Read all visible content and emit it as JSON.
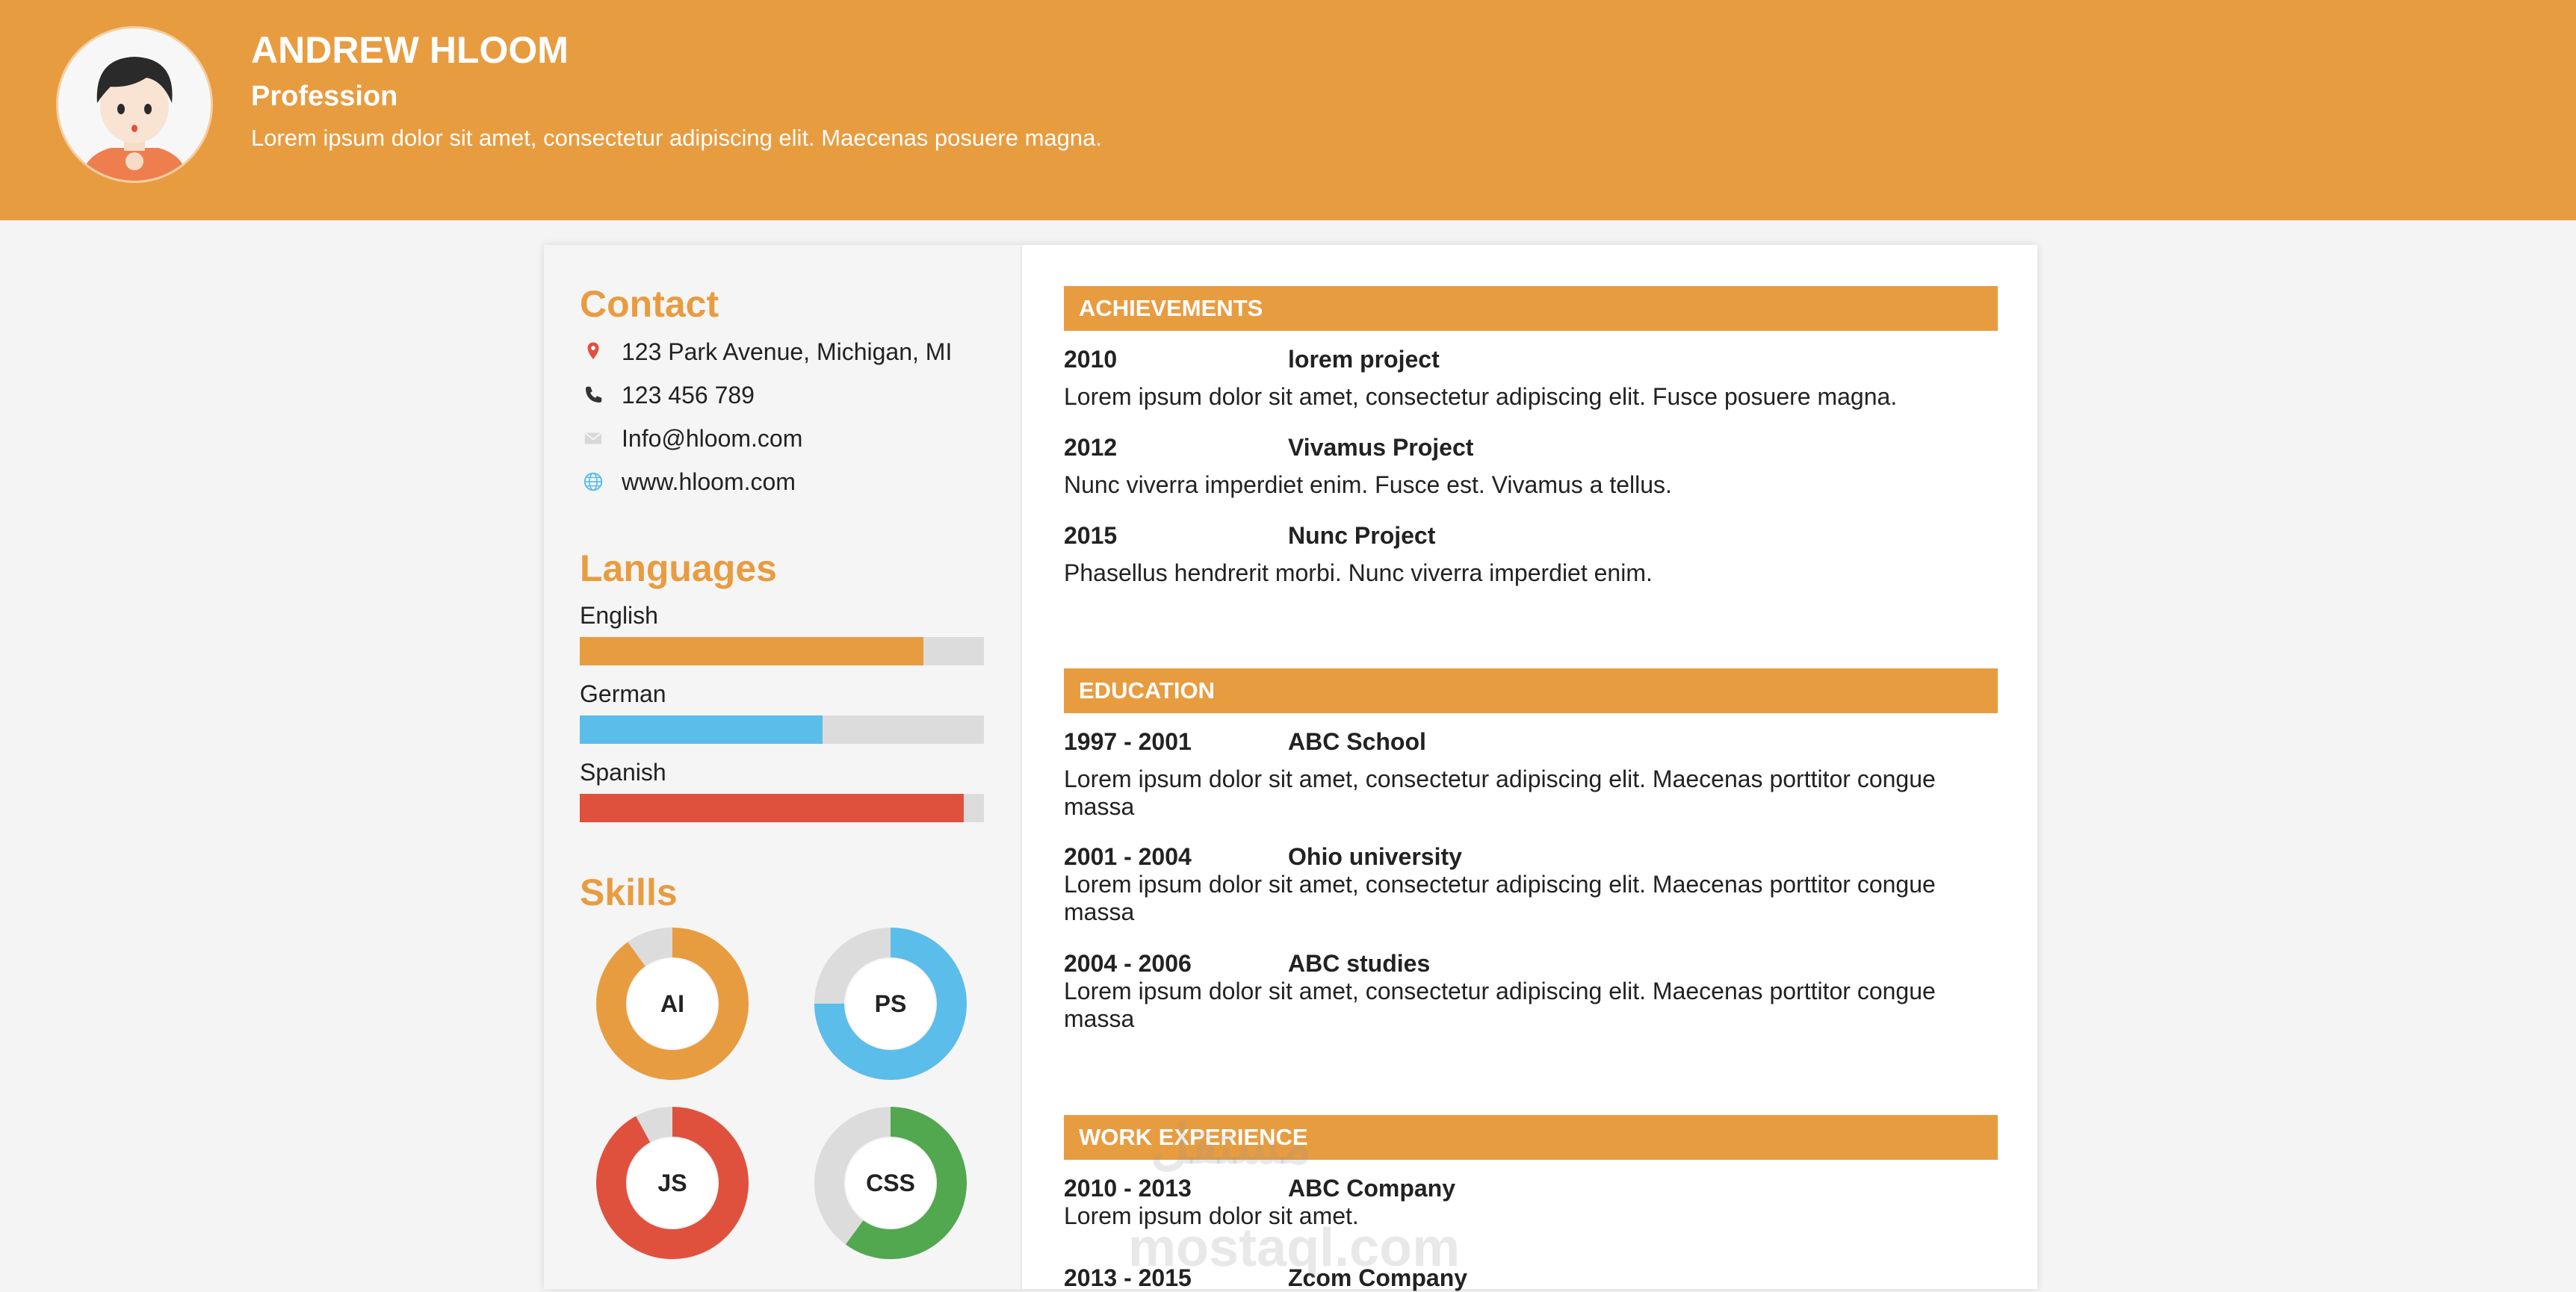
{
  "header": {
    "name": "ANDREW HLOOM",
    "profession": "Profession",
    "summary": "Lorem ipsum dolor sit amet, consectetur adipiscing elit. Maecenas posuere magna."
  },
  "contact": {
    "heading": "Contact",
    "items": [
      {
        "icon": "map-pin-icon",
        "text": "123 Park Avenue, Michigan, MI"
      },
      {
        "icon": "phone-icon",
        "text": "123 456 789"
      },
      {
        "icon": "mail-icon",
        "text": "Info@hloom.com"
      },
      {
        "icon": "globe-icon",
        "text": "www.hloom.com"
      }
    ]
  },
  "languages": {
    "heading": "Languages",
    "items": [
      {
        "name": "English",
        "level": 0.85,
        "color": "#e89c40"
      },
      {
        "name": "German",
        "level": 0.6,
        "color": "#5bbdea"
      },
      {
        "name": "Spanish",
        "level": 0.95,
        "color": "#e0513d"
      }
    ]
  },
  "skills": {
    "heading": "Skills",
    "items": [
      {
        "name": "AI",
        "level": 0.9,
        "color": "#e89c40"
      },
      {
        "name": "PS",
        "level": 0.75,
        "color": "#5bbdea"
      },
      {
        "name": "JS",
        "level": 0.92,
        "color": "#e0513d"
      },
      {
        "name": "CSS",
        "level": 0.6,
        "color": "#52a84f"
      }
    ]
  },
  "sections": {
    "achievements": {
      "title": "ACHIEVEMENTS",
      "entries": [
        {
          "year": "2010",
          "title": "lorem project",
          "desc": "Lorem ipsum dolor sit amet, consectetur adipiscing elit. Fusce posuere magna."
        },
        {
          "year": "2012",
          "title": "Vivamus Project",
          "desc": "Nunc viverra imperdiet enim. Fusce est. Vivamus a tellus."
        },
        {
          "year": "2015",
          "title": "Nunc Project",
          "desc": "Phasellus hendrerit morbi. Nunc viverra imperdiet enim."
        }
      ]
    },
    "education": {
      "title": "EDUCATION",
      "entries": [
        {
          "year": "1997 - 2001",
          "title": "ABC School",
          "desc": "Lorem ipsum dolor sit amet, consectetur adipiscing elit. Maecenas porttitor congue massa"
        },
        {
          "year": "2001 - 2004",
          "title": "Ohio university",
          "desc": "Lorem ipsum dolor sit amet, consectetur adipiscing elit. Maecenas porttitor congue massa"
        },
        {
          "year": "2004 - 2006",
          "title": "ABC studies",
          "desc": "Lorem ipsum dolor sit amet, consectetur adipiscing elit. Maecenas porttitor congue massa"
        }
      ]
    },
    "work": {
      "title": "WORK EXPERIENCE",
      "entries": [
        {
          "year": "2010 - 2013",
          "title": "ABC Company",
          "desc": "Lorem ipsum dolor sit amet."
        },
        {
          "year": "2013 - 2015",
          "title": "Zcom Company",
          "desc": ""
        }
      ]
    }
  },
  "watermark": {
    "arabic": "مستقل",
    "latin": "mostaql.com"
  },
  "colors": {
    "accent": "#e89c40",
    "blue": "#5bbdea",
    "red": "#e0513d",
    "green": "#52a84f",
    "track": "#dcdcdc"
  }
}
